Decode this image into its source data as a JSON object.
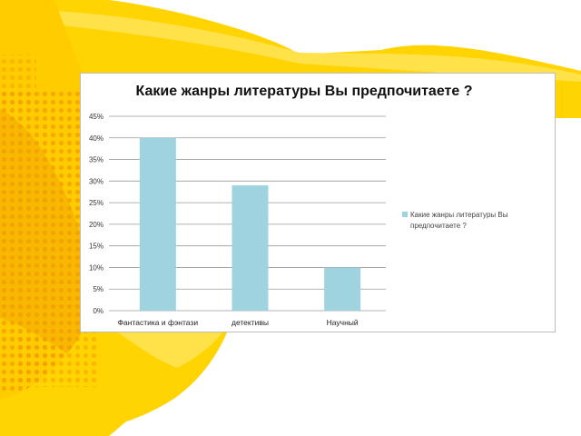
{
  "colors": {
    "bar": "#9ed3df",
    "grid": "#9a9a9a",
    "background_yellow": "#ffd500",
    "background_orange": "#f6a600"
  },
  "chart_data": {
    "type": "bar",
    "title": "Какие жанры литературы Вы предпочитаете ?",
    "categories": [
      "Фантастика и фэнтази",
      "детективы",
      "Научный"
    ],
    "series": [
      {
        "name": "Какие жанры литературы Вы предпочитаете ?",
        "values": [
          40,
          29,
          10
        ]
      }
    ],
    "y_ticks": [
      "0%",
      "5%",
      "10%",
      "15%",
      "20%",
      "25%",
      "30%",
      "35%",
      "40%",
      "45%"
    ],
    "ylim": [
      0,
      45
    ],
    "grid": true,
    "legend_position": "right",
    "legend_lines": [
      "Какие жанры литературы Вы",
      "предпочитаете ?"
    ]
  }
}
